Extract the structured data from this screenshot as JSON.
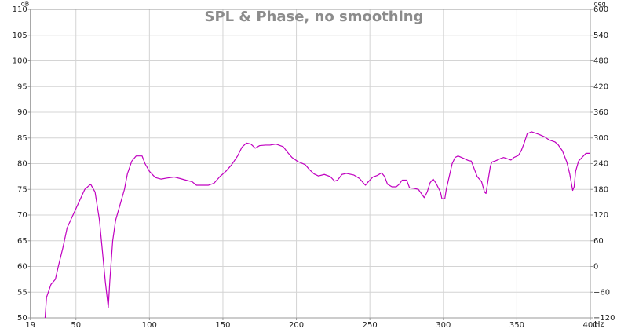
{
  "chart_data": {
    "type": "line",
    "title": "SPL & Phase, no smoothing",
    "y_label": "dB",
    "y2_label": "deg",
    "x_label": "Hz",
    "color": "#c000c0",
    "grid": true,
    "xlim": [
      19,
      400
    ],
    "xticks": [
      19,
      50,
      100,
      150,
      200,
      250,
      300,
      350,
      400
    ],
    "ylim": [
      50,
      110
    ],
    "yticks": [
      50,
      55,
      60,
      65,
      70,
      75,
      80,
      85,
      90,
      95,
      100,
      105,
      110
    ],
    "y2lim": [
      -120,
      600
    ],
    "y2ticks": [
      {
        "value": -120,
        "label": "−120"
      },
      {
        "value": -60,
        "label": "−60"
      },
      0,
      60,
      120,
      180,
      240,
      300,
      360,
      420,
      480,
      540,
      600
    ],
    "x": [
      29,
      30,
      33,
      36,
      38,
      41,
      44,
      48,
      52,
      56,
      60,
      63,
      66,
      68,
      70,
      72,
      73,
      75,
      77,
      80,
      83,
      85,
      88,
      91,
      95,
      97,
      100,
      104,
      108,
      112,
      117,
      121,
      126,
      129,
      132,
      136,
      140,
      144,
      148,
      152,
      156,
      160,
      163,
      166,
      169,
      172,
      175,
      179,
      182,
      186,
      191,
      194,
      197,
      201,
      206,
      209,
      212,
      215,
      219,
      223,
      226,
      228,
      231,
      234,
      239,
      243,
      246,
      247,
      249,
      252,
      255,
      258,
      260,
      262,
      265,
      268,
      270,
      272,
      275,
      277,
      280,
      283,
      285,
      287,
      289,
      291,
      293,
      295,
      298,
      299,
      301,
      302,
      304,
      306,
      308,
      310,
      314,
      317,
      319,
      321,
      323,
      326,
      328,
      329,
      330,
      332,
      333,
      336,
      339,
      341,
      344,
      346,
      348,
      351,
      353,
      355,
      357,
      360,
      362,
      365,
      369,
      372,
      376,
      378,
      381,
      384,
      386,
      388,
      389,
      390,
      392,
      395,
      397,
      400
    ],
    "values": [
      50,
      54,
      56.5,
      57.5,
      60,
      63.5,
      67.5,
      70,
      72.5,
      75,
      76,
      74.5,
      69,
      63,
      57,
      52,
      57,
      65,
      69,
      72,
      75,
      78,
      80.5,
      81.5,
      81.5,
      80,
      78.5,
      77.3,
      77,
      77.2,
      77.4,
      77.1,
      76.7,
      76.5,
      75.8,
      75.8,
      75.8,
      76.2,
      77.5,
      78.5,
      79.8,
      81.5,
      83.2,
      84,
      83.8,
      83,
      83.5,
      83.6,
      83.6,
      83.8,
      83.3,
      82.2,
      81.2,
      80.4,
      79.8,
      78.8,
      78,
      77.6,
      77.9,
      77.5,
      76.6,
      76.8,
      77.9,
      78.1,
      77.8,
      77.1,
      76.1,
      75.8,
      76.5,
      77.4,
      77.7,
      78.2,
      77.5,
      76,
      75.5,
      75.5,
      76,
      76.8,
      76.8,
      75.3,
      75.2,
      75,
      74.2,
      73.4,
      74.5,
      76.3,
      77,
      76.2,
      74.5,
      73.2,
      73.2,
      75,
      77.5,
      80,
      81.2,
      81.5,
      81,
      80.6,
      80.5,
      79,
      77.5,
      76.5,
      74.5,
      74.2,
      76,
      79.5,
      80.3,
      80.6,
      81,
      81.2,
      80.9,
      80.7,
      81.2,
      81.6,
      82.5,
      84,
      85.8,
      86.2,
      86,
      85.7,
      85.2,
      84.6,
      84.2,
      83.7,
      82.5,
      80.3,
      78,
      74.8,
      75.5,
      78.5,
      80.5,
      81.4,
      82,
      82
    ]
  }
}
